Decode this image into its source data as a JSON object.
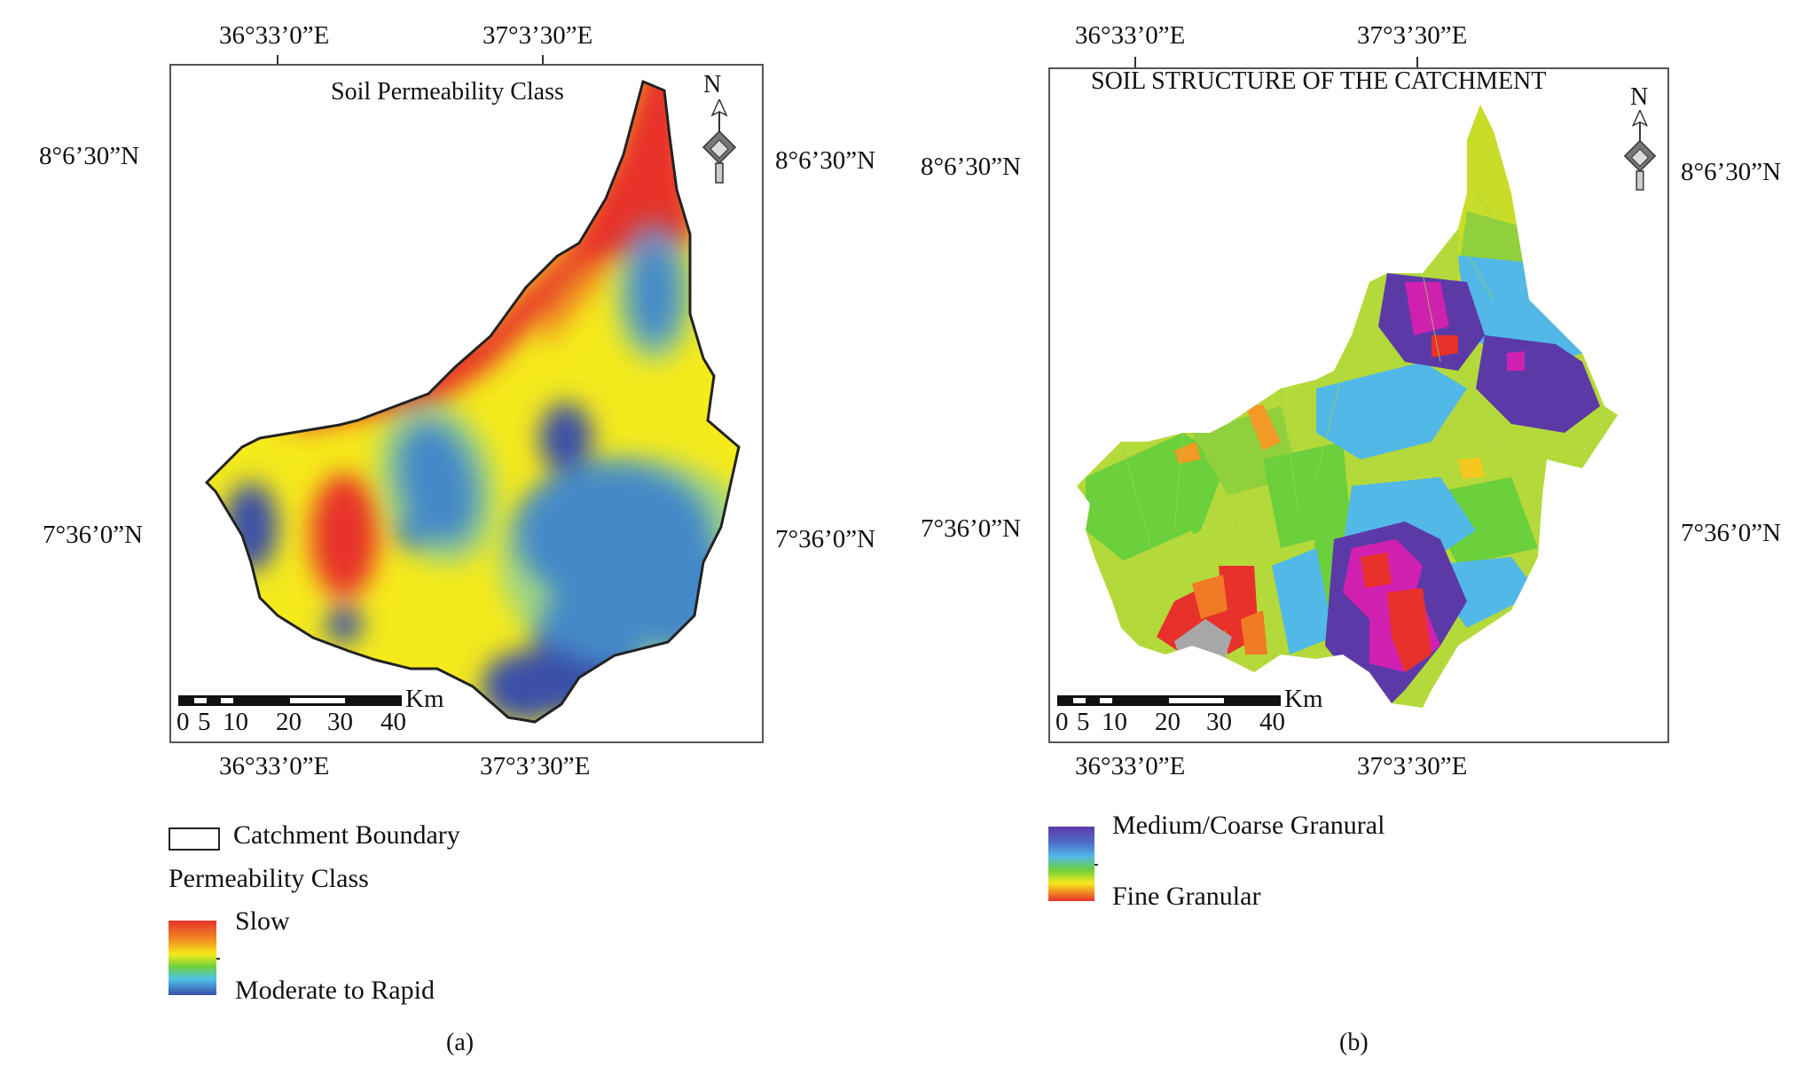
{
  "panel_a": {
    "title": "Soil Permeability Class",
    "north": "N",
    "top_lon": [
      "36°33’0”E",
      "37°3’30”E"
    ],
    "bottom_lon": [
      "36°33’0”E",
      "37°3’30”E"
    ],
    "left_lat": [
      "8°6’30”N",
      "7°36’0”N"
    ],
    "right_lat": [
      "8°6’30”N",
      "7°36’0”N"
    ],
    "scale_unit": "Km",
    "scale_ticks": [
      "0",
      "5",
      "10",
      "20",
      "30",
      "40"
    ],
    "legend_boundary": "Catchment Boundary",
    "legend_heading": "Permeability Class",
    "legend_high": "Slow",
    "legend_low": "Moderate to Rapid",
    "caption": "(a)",
    "colors": {
      "slow": "#e8312a",
      "mid": "#f5ea1c",
      "rapid": "#3a4fa8"
    }
  },
  "panel_b": {
    "title": "SOIL STRUCTURE OF THE CATCHMENT",
    "north": "N",
    "top_lon": [
      "36°33’0”E",
      "37°3’30”E"
    ],
    "bottom_lon": [
      "36°33’0”E",
      "37°3’30”E"
    ],
    "left_lat": [
      "8°6’30”N",
      "7°36’0”N"
    ],
    "right_lat": [
      "8°6’30”N",
      "7°36’0”N"
    ],
    "scale_unit": "Km",
    "scale_ticks": [
      "0",
      "5",
      "10",
      "20",
      "30",
      "40"
    ],
    "legend_high": "Medium/Coarse Granural",
    "legend_low": "Fine Granular",
    "caption": "(b)",
    "colors": {
      "fine": "#e8312a",
      "medium": "#6ccf3c",
      "coarse": "#5b3aa8",
      "magenta": "#d020b0"
    }
  }
}
